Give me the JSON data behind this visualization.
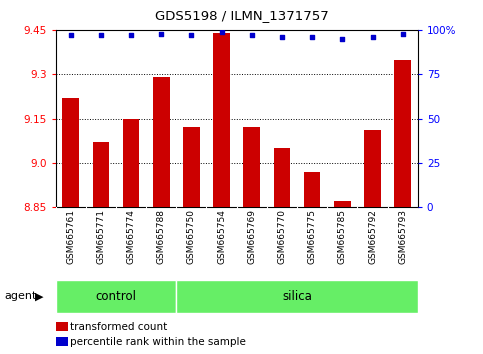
{
  "title": "GDS5198 / ILMN_1371757",
  "samples": [
    "GSM665761",
    "GSM665771",
    "GSM665774",
    "GSM665788",
    "GSM665750",
    "GSM665754",
    "GSM665769",
    "GSM665770",
    "GSM665775",
    "GSM665785",
    "GSM665792",
    "GSM665793"
  ],
  "red_values": [
    9.22,
    9.07,
    9.15,
    9.29,
    9.12,
    9.44,
    9.12,
    9.05,
    8.97,
    8.87,
    9.11,
    9.35
  ],
  "blue_values": [
    97,
    97,
    97,
    98,
    97,
    99,
    97,
    96,
    96,
    95,
    96,
    98
  ],
  "control_count": 4,
  "silica_count": 8,
  "y_min": 8.85,
  "y_max": 9.45,
  "y_ticks": [
    8.85,
    9.0,
    9.15,
    9.3,
    9.45
  ],
  "y2_ticks": [
    0,
    25,
    50,
    75,
    100
  ],
  "bar_color": "#cc0000",
  "dot_color": "#0000cc",
  "control_color": "#66ee66",
  "silica_color": "#66ee66",
  "bg_color": "#c8c8c8",
  "legend_red": "transformed count",
  "legend_blue": "percentile rank within the sample",
  "agent_label": "agent",
  "control_label": "control",
  "silica_label": "silica"
}
